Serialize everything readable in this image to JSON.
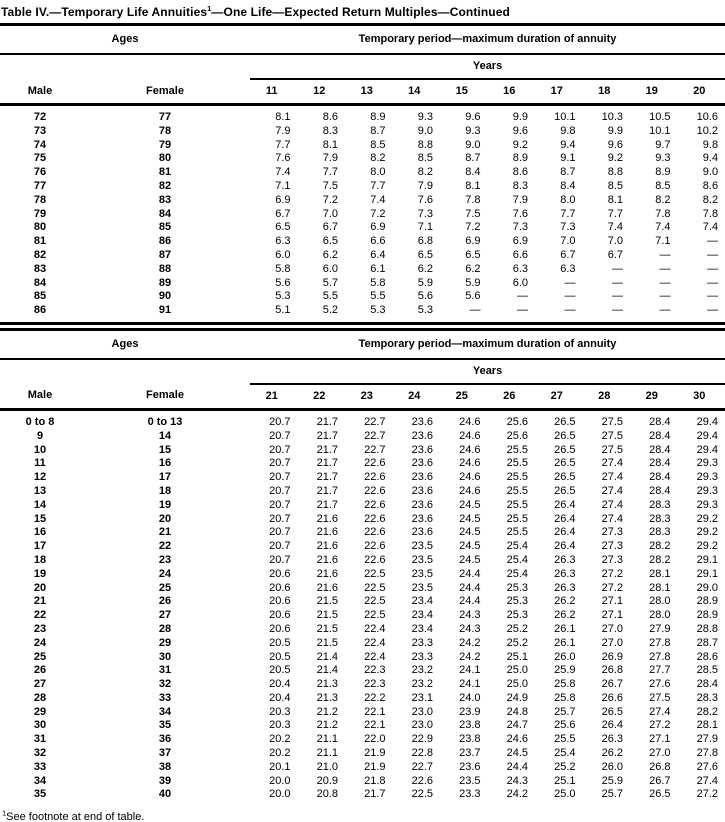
{
  "title": {
    "prefix": "Table IV.—Temporary Life Annuities",
    "sup": "1",
    "suffix": "—One Life—Expected Return Multiples—Continued"
  },
  "tables": [
    {
      "ages_header": "Ages",
      "period_header": "Temporary period—maximum duration of annuity",
      "years_label": "Years",
      "male_header": "Male",
      "female_header": "Female",
      "year_columns": [
        "11",
        "12",
        "13",
        "14",
        "15",
        "16",
        "17",
        "18",
        "19",
        "20"
      ],
      "rows": [
        {
          "male": "72",
          "female": "77",
          "values": [
            "8.1",
            "8.6",
            "8.9",
            "9.3",
            "9.6",
            "9.9",
            "10.1",
            "10.3",
            "10.5",
            "10.6"
          ]
        },
        {
          "male": "73",
          "female": "78",
          "values": [
            "7.9",
            "8.3",
            "8.7",
            "9.0",
            "9.3",
            "9.6",
            "9.8",
            "9.9",
            "10.1",
            "10.2"
          ]
        },
        {
          "male": "74",
          "female": "79",
          "values": [
            "7.7",
            "8.1",
            "8.5",
            "8.8",
            "9.0",
            "9.2",
            "9.4",
            "9.6",
            "9.7",
            "9.8"
          ]
        },
        {
          "male": "75",
          "female": "80",
          "values": [
            "7.6",
            "7.9",
            "8.2",
            "8.5",
            "8.7",
            "8.9",
            "9.1",
            "9.2",
            "9.3",
            "9.4"
          ]
        },
        {
          "male": "76",
          "female": "81",
          "values": [
            "7.4",
            "7.7",
            "8.0",
            "8.2",
            "8.4",
            "8.6",
            "8.7",
            "8.8",
            "8.9",
            "9.0"
          ]
        },
        {
          "male": "77",
          "female": "82",
          "values": [
            "7.1",
            "7.5",
            "7.7",
            "7.9",
            "8.1",
            "8.3",
            "8.4",
            "8.5",
            "8.5",
            "8.6"
          ]
        },
        {
          "male": "78",
          "female": "83",
          "values": [
            "6.9",
            "7.2",
            "7.4",
            "7.6",
            "7.8",
            "7.9",
            "8.0",
            "8.1",
            "8.2",
            "8.2"
          ]
        },
        {
          "male": "79",
          "female": "84",
          "values": [
            "6.7",
            "7.0",
            "7.2",
            "7.3",
            "7.5",
            "7.6",
            "7.7",
            "7.7",
            "7.8",
            "7.8"
          ]
        },
        {
          "male": "80",
          "female": "85",
          "values": [
            "6.5",
            "6.7",
            "6.9",
            "7.1",
            "7.2",
            "7.3",
            "7.3",
            "7.4",
            "7.4",
            "7.4"
          ]
        },
        {
          "male": "81",
          "female": "86",
          "values": [
            "6.3",
            "6.5",
            "6.6",
            "6.8",
            "6.9",
            "6.9",
            "7.0",
            "7.0",
            "7.1",
            "—"
          ]
        },
        {
          "male": "82",
          "female": "87",
          "values": [
            "6.0",
            "6.2",
            "6.4",
            "6.5",
            "6.5",
            "6.6",
            "6.7",
            "6.7",
            "—",
            "—"
          ]
        },
        {
          "male": "83",
          "female": "88",
          "values": [
            "5.8",
            "6.0",
            "6.1",
            "6.2",
            "6.2",
            "6.3",
            "6.3",
            "—",
            "—",
            "—"
          ]
        },
        {
          "male": "84",
          "female": "89",
          "values": [
            "5.6",
            "5.7",
            "5.8",
            "5.9",
            "5.9",
            "6.0",
            "—",
            "—",
            "—",
            "—"
          ]
        },
        {
          "male": "85",
          "female": "90",
          "values": [
            "5.3",
            "5.5",
            "5.5",
            "5.6",
            "5.6",
            "—",
            "—",
            "—",
            "—",
            "—"
          ]
        },
        {
          "male": "86",
          "female": "91",
          "values": [
            "5.1",
            "5.2",
            "5.3",
            "5.3",
            "—",
            "—",
            "—",
            "—",
            "—",
            "—"
          ]
        }
      ]
    },
    {
      "ages_header": "Ages",
      "period_header": "Temporary period—maximum duration of annuity",
      "years_label": "Years",
      "male_header": "Male",
      "female_header": "Female",
      "year_columns": [
        "21",
        "22",
        "23",
        "24",
        "25",
        "26",
        "27",
        "28",
        "29",
        "30"
      ],
      "rows": [
        {
          "male": "0 to 8",
          "female": "0 to 13",
          "values": [
            "20.7",
            "21.7",
            "22.7",
            "23.6",
            "24.6",
            "25.6",
            "26.5",
            "27.5",
            "28.4",
            "29.4"
          ]
        },
        {
          "male": "9",
          "female": "14",
          "values": [
            "20.7",
            "21.7",
            "22.7",
            "23.6",
            "24.6",
            "25.6",
            "26.5",
            "27.5",
            "28.4",
            "29.4"
          ]
        },
        {
          "male": "10",
          "female": "15",
          "values": [
            "20.7",
            "21.7",
            "22.7",
            "23.6",
            "24.6",
            "25.5",
            "26.5",
            "27.5",
            "28.4",
            "29.4"
          ]
        },
        {
          "male": "11",
          "female": "16",
          "values": [
            "20.7",
            "21.7",
            "22.6",
            "23.6",
            "24.6",
            "25.5",
            "26.5",
            "27.4",
            "28.4",
            "29.3"
          ]
        },
        {
          "male": "12",
          "female": "17",
          "values": [
            "20.7",
            "21.7",
            "22.6",
            "23.6",
            "24.6",
            "25.5",
            "26.5",
            "27.4",
            "28.4",
            "29.3"
          ]
        },
        {
          "male": "13",
          "female": "18",
          "values": [
            "20.7",
            "21.7",
            "22.6",
            "23.6",
            "24.6",
            "25.5",
            "26.5",
            "27.4",
            "28.4",
            "29.3"
          ]
        },
        {
          "male": "14",
          "female": "19",
          "values": [
            "20.7",
            "21.7",
            "22.6",
            "23.6",
            "24.5",
            "25.5",
            "26.4",
            "27.4",
            "28.3",
            "29.3"
          ]
        },
        {
          "male": "15",
          "female": "20",
          "values": [
            "20.7",
            "21.6",
            "22.6",
            "23.6",
            "24.5",
            "25.5",
            "26.4",
            "27.4",
            "28.3",
            "29.2"
          ]
        },
        {
          "male": "16",
          "female": "21",
          "values": [
            "20.7",
            "21.6",
            "22.6",
            "23.6",
            "24.5",
            "25.5",
            "26.4",
            "27.3",
            "28.3",
            "29.2"
          ]
        },
        {
          "male": "17",
          "female": "22",
          "values": [
            "20.7",
            "21.6",
            "22.6",
            "23.5",
            "24.5",
            "25.4",
            "26.4",
            "27.3",
            "28.2",
            "29.2"
          ]
        },
        {
          "male": "18",
          "female": "23",
          "values": [
            "20.7",
            "21.6",
            "22.6",
            "23.5",
            "24.5",
            "25.4",
            "26.3",
            "27.3",
            "28.2",
            "29.1"
          ]
        },
        {
          "male": "19",
          "female": "24",
          "values": [
            "20.6",
            "21.6",
            "22.5",
            "23.5",
            "24.4",
            "25.4",
            "26.3",
            "27.2",
            "28.1",
            "29.1"
          ]
        },
        {
          "male": "20",
          "female": "25",
          "values": [
            "20.6",
            "21.6",
            "22.5",
            "23.5",
            "24.4",
            "25.3",
            "26.3",
            "27.2",
            "28.1",
            "29.0"
          ]
        },
        {
          "male": "21",
          "female": "26",
          "values": [
            "20.6",
            "21.5",
            "22.5",
            "23.4",
            "24.4",
            "25.3",
            "26.2",
            "27.1",
            "28.0",
            "28.9"
          ]
        },
        {
          "male": "22",
          "female": "27",
          "values": [
            "20.6",
            "21.5",
            "22.5",
            "23.4",
            "24.3",
            "25.3",
            "26.2",
            "27.1",
            "28.0",
            "28.9"
          ]
        },
        {
          "male": "23",
          "female": "28",
          "values": [
            "20.6",
            "21.5",
            "22.4",
            "23.4",
            "24.3",
            "25.2",
            "26.1",
            "27.0",
            "27.9",
            "28.8"
          ]
        },
        {
          "male": "24",
          "female": "29",
          "values": [
            "20.5",
            "21.5",
            "22.4",
            "23.3",
            "24.2",
            "25.2",
            "26.1",
            "27.0",
            "27.8",
            "28.7"
          ]
        },
        {
          "male": "25",
          "female": "30",
          "values": [
            "20.5",
            "21.4",
            "22.4",
            "23.3",
            "24.2",
            "25.1",
            "26.0",
            "26.9",
            "27.8",
            "28.6"
          ]
        },
        {
          "male": "26",
          "female": "31",
          "values": [
            "20.5",
            "21.4",
            "22.3",
            "23.2",
            "24.1",
            "25.0",
            "25.9",
            "26.8",
            "27.7",
            "28.5"
          ]
        },
        {
          "male": "27",
          "female": "32",
          "values": [
            "20.4",
            "21.3",
            "22.3",
            "23.2",
            "24.1",
            "25.0",
            "25.8",
            "26.7",
            "27.6",
            "28.4"
          ]
        },
        {
          "male": "28",
          "female": "33",
          "values": [
            "20.4",
            "21.3",
            "22.2",
            "23.1",
            "24.0",
            "24.9",
            "25.8",
            "26.6",
            "27.5",
            "28.3"
          ]
        },
        {
          "male": "29",
          "female": "34",
          "values": [
            "20.3",
            "21.2",
            "22.1",
            "23.0",
            "23.9",
            "24.8",
            "25.7",
            "26.5",
            "27.4",
            "28.2"
          ]
        },
        {
          "male": "30",
          "female": "35",
          "values": [
            "20.3",
            "21.2",
            "22.1",
            "23.0",
            "23.8",
            "24.7",
            "25.6",
            "26.4",
            "27.2",
            "28.1"
          ]
        },
        {
          "male": "31",
          "female": "36",
          "values": [
            "20.2",
            "21.1",
            "22.0",
            "22.9",
            "23.8",
            "24.6",
            "25.5",
            "26.3",
            "27.1",
            "27.9"
          ]
        },
        {
          "male": "32",
          "female": "37",
          "values": [
            "20.2",
            "21.1",
            "21.9",
            "22.8",
            "23.7",
            "24.5",
            "25.4",
            "26.2",
            "27.0",
            "27.8"
          ]
        },
        {
          "male": "33",
          "female": "38",
          "values": [
            "20.1",
            "21.0",
            "21.9",
            "22.7",
            "23.6",
            "24.4",
            "25.2",
            "26.0",
            "26.8",
            "27.6"
          ]
        },
        {
          "male": "34",
          "female": "39",
          "values": [
            "20.0",
            "20.9",
            "21.8",
            "22.6",
            "23.5",
            "24.3",
            "25.1",
            "25.9",
            "26.7",
            "27.4"
          ]
        },
        {
          "male": "35",
          "female": "40",
          "values": [
            "20.0",
            "20.8",
            "21.7",
            "22.5",
            "23.3",
            "24.2",
            "25.0",
            "25.7",
            "26.5",
            "27.2"
          ]
        }
      ]
    }
  ],
  "footnote": {
    "sup": "1",
    "text": "See footnote at end of table."
  }
}
